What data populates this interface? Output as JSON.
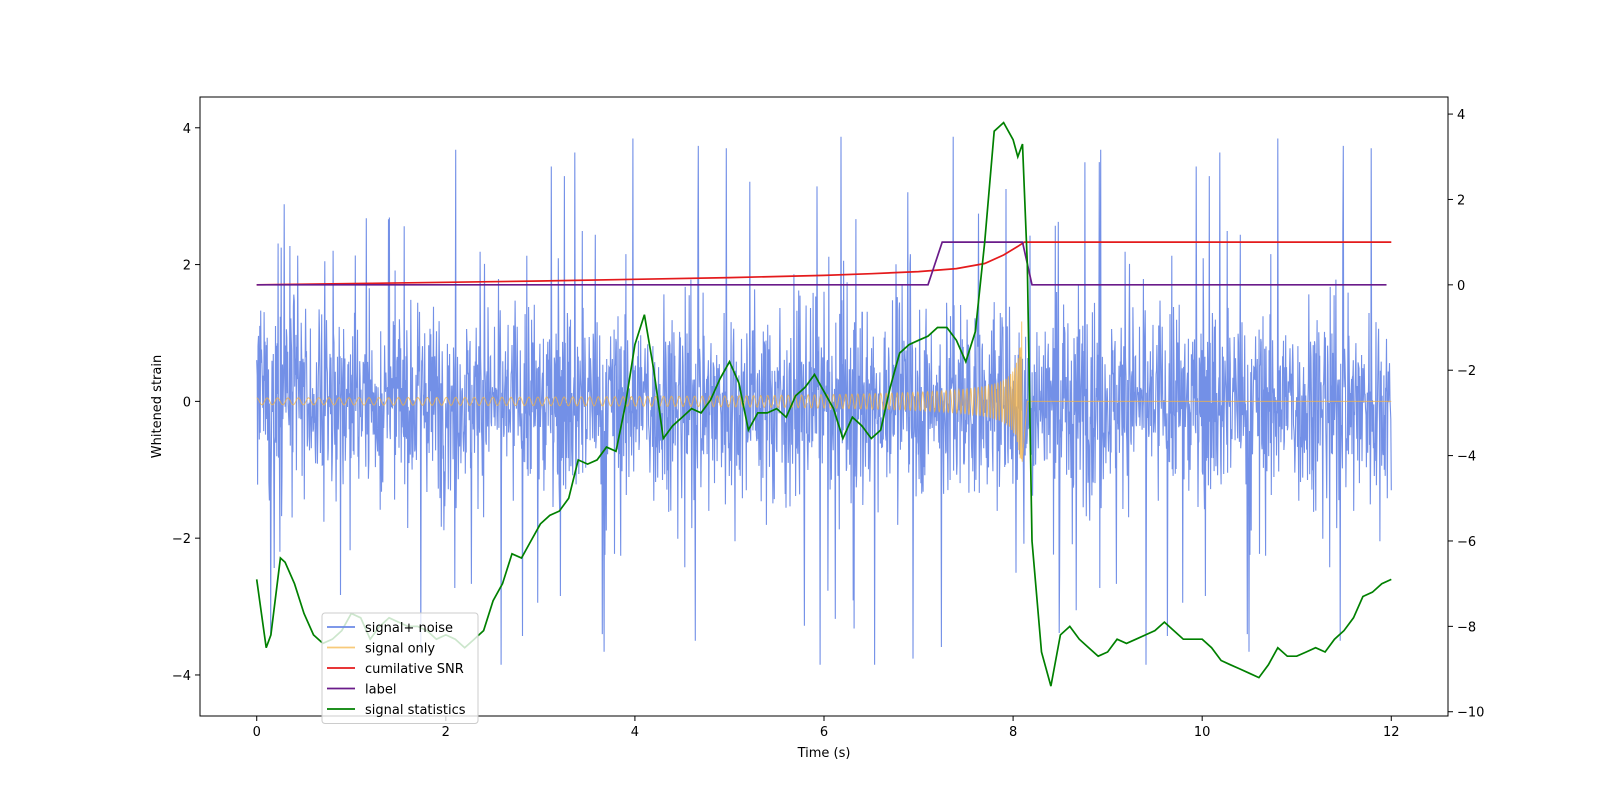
{
  "chart_data": {
    "type": "line",
    "title": "",
    "xlabel": "Time (s)",
    "ylabel": "Whitened strain",
    "y2label": "",
    "xlim": [
      -0.6,
      12.6
    ],
    "ylim": [
      -4.6,
      4.45
    ],
    "y2lim": [
      -10.1,
      4.4
    ],
    "xticks": [
      0,
      2,
      4,
      6,
      8,
      10,
      12
    ],
    "yticks": [
      -4,
      -2,
      0,
      2,
      4
    ],
    "y2ticks": [
      -10,
      -8,
      -6,
      -4,
      -2,
      0,
      2,
      4
    ],
    "noise": {
      "duration": 12,
      "base_amplitude": 1.0,
      "spike_upper_max": 4.05,
      "spike_lower_min": -3.85
    },
    "merger_time": 8.1,
    "series": [
      {
        "name": "signal+ noise",
        "color": "#6c8ae6",
        "axis": "left",
        "kind": "noise"
      },
      {
        "name": "signal only",
        "color": "#f5b342",
        "axis": "left",
        "kind": "chirp",
        "t_start": 0,
        "t_merge": 8.1,
        "peak_amplitude": 1.3,
        "initial_amplitude": 0.05
      },
      {
        "name": "cumilative SNR",
        "color": "#e41a1c",
        "axis": "right",
        "x": [
          0,
          1,
          2,
          3,
          4,
          5,
          6,
          6.5,
          7,
          7.4,
          7.7,
          7.9,
          8.05,
          8.12,
          8.2,
          10,
          12
        ],
        "values": [
          0,
          0.03,
          0.06,
          0.09,
          0.13,
          0.17,
          0.22,
          0.26,
          0.31,
          0.38,
          0.5,
          0.7,
          0.9,
          1.0,
          1.0,
          1.0,
          1.0
        ]
      },
      {
        "name": "label",
        "color": "#6a1b8a",
        "axis": "right",
        "x": [
          0,
          7.1,
          7.25,
          8.1,
          8.2,
          11.95
        ],
        "values": [
          0,
          0,
          1,
          1,
          0,
          0
        ]
      },
      {
        "name": "signal statistics",
        "color": "#008000",
        "axis": "right",
        "x": [
          0,
          0.1,
          0.15,
          0.25,
          0.3,
          0.4,
          0.5,
          0.6,
          0.7,
          0.8,
          0.9,
          1.0,
          1.1,
          1.2,
          1.3,
          1.4,
          1.5,
          1.6,
          1.7,
          1.8,
          1.9,
          2.0,
          2.1,
          2.2,
          2.3,
          2.4,
          2.5,
          2.6,
          2.7,
          2.8,
          2.9,
          3.0,
          3.1,
          3.2,
          3.3,
          3.4,
          3.5,
          3.6,
          3.7,
          3.8,
          3.9,
          4.0,
          4.1,
          4.2,
          4.3,
          4.4,
          4.5,
          4.6,
          4.7,
          4.8,
          4.9,
          5.0,
          5.1,
          5.2,
          5.3,
          5.4,
          5.5,
          5.6,
          5.7,
          5.8,
          5.9,
          6.0,
          6.1,
          6.2,
          6.3,
          6.4,
          6.5,
          6.6,
          6.7,
          6.8,
          6.9,
          7.0,
          7.1,
          7.2,
          7.3,
          7.4,
          7.5,
          7.6,
          7.7,
          7.8,
          7.9,
          8.0,
          8.05,
          8.1,
          8.15,
          8.2,
          8.3,
          8.4,
          8.5,
          8.6,
          8.7,
          8.8,
          8.9,
          9.0,
          9.1,
          9.2,
          9.3,
          9.4,
          9.5,
          9.6,
          9.7,
          9.8,
          9.9,
          10.0,
          10.1,
          10.2,
          10.3,
          10.4,
          10.5,
          10.6,
          10.7,
          10.8,
          10.9,
          11.0,
          11.1,
          11.2,
          11.3,
          11.4,
          11.5,
          11.6,
          11.7,
          11.8,
          11.9,
          12.0
        ],
        "values": [
          -6.9,
          -8.5,
          -8.2,
          -6.4,
          -6.5,
          -7.0,
          -7.7,
          -8.2,
          -8.4,
          -8.3,
          -8.1,
          -7.7,
          -7.8,
          -8.3,
          -8.0,
          -7.8,
          -7.9,
          -8.0,
          -8.0,
          -8.1,
          -8.3,
          -8.2,
          -8.3,
          -8.5,
          -8.3,
          -8.1,
          -7.4,
          -7.0,
          -6.3,
          -6.4,
          -6.0,
          -5.6,
          -5.4,
          -5.3,
          -5.0,
          -4.1,
          -4.2,
          -4.1,
          -3.8,
          -3.9,
          -2.8,
          -1.4,
          -0.7,
          -2.0,
          -3.6,
          -3.3,
          -3.1,
          -2.9,
          -3.0,
          -2.7,
          -2.2,
          -1.8,
          -2.3,
          -3.4,
          -3.0,
          -3.0,
          -2.9,
          -3.1,
          -2.6,
          -2.4,
          -2.1,
          -2.5,
          -2.9,
          -3.6,
          -3.1,
          -3.3,
          -3.6,
          -3.4,
          -2.4,
          -1.6,
          -1.4,
          -1.3,
          -1.2,
          -1.0,
          -1.0,
          -1.3,
          -1.8,
          -1.1,
          1.0,
          3.6,
          3.8,
          3.4,
          3.0,
          3.3,
          0.5,
          -6.0,
          -8.6,
          -9.4,
          -8.2,
          -8.0,
          -8.3,
          -8.5,
          -8.7,
          -8.6,
          -8.3,
          -8.4,
          -8.3,
          -8.2,
          -8.1,
          -7.9,
          -8.1,
          -8.3,
          -8.3,
          -8.3,
          -8.5,
          -8.8,
          -8.9,
          -9.0,
          -9.1,
          -9.2,
          -8.9,
          -8.5,
          -8.7,
          -8.7,
          -8.6,
          -8.5,
          -8.6,
          -8.3,
          -8.1,
          -7.8,
          -7.3,
          -7.2,
          -7.0,
          -6.9
        ]
      }
    ]
  }
}
